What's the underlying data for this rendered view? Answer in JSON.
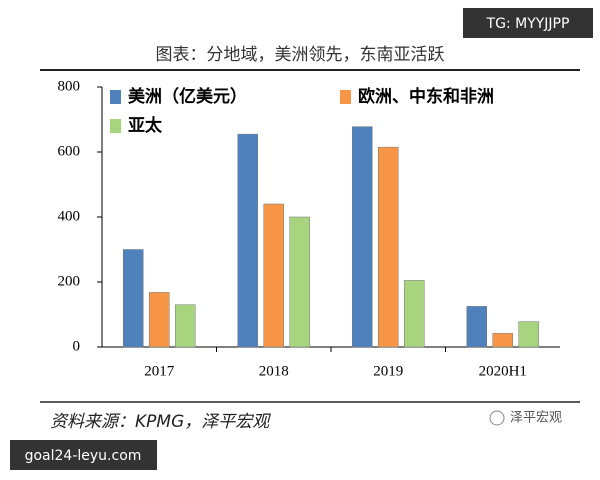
{
  "chart_data": {
    "type": "bar",
    "title": "图表：分地域，美洲领先，东南亚活跃",
    "categories": [
      "2017",
      "2018",
      "2019",
      "2020H1"
    ],
    "series": [
      {
        "name": "美洲（亿美元）",
        "color": "#4f81bd",
        "values": [
          300,
          655,
          678,
          125
        ]
      },
      {
        "name": "欧洲、中东和非洲",
        "color": "#f79646",
        "values": [
          168,
          440,
          615,
          42
        ]
      },
      {
        "name": "亚太",
        "color": "#a9d47f",
        "values": [
          130,
          400,
          205,
          78
        ]
      }
    ],
    "ylim": [
      0,
      800
    ],
    "yticks": [
      0,
      200,
      400,
      600,
      800
    ],
    "source": "资料来源：KPMG，泽平宏观",
    "annotations": [
      "TG: MYYJJPP",
      "goal24-leyu.com",
      "泽平宏观"
    ]
  }
}
